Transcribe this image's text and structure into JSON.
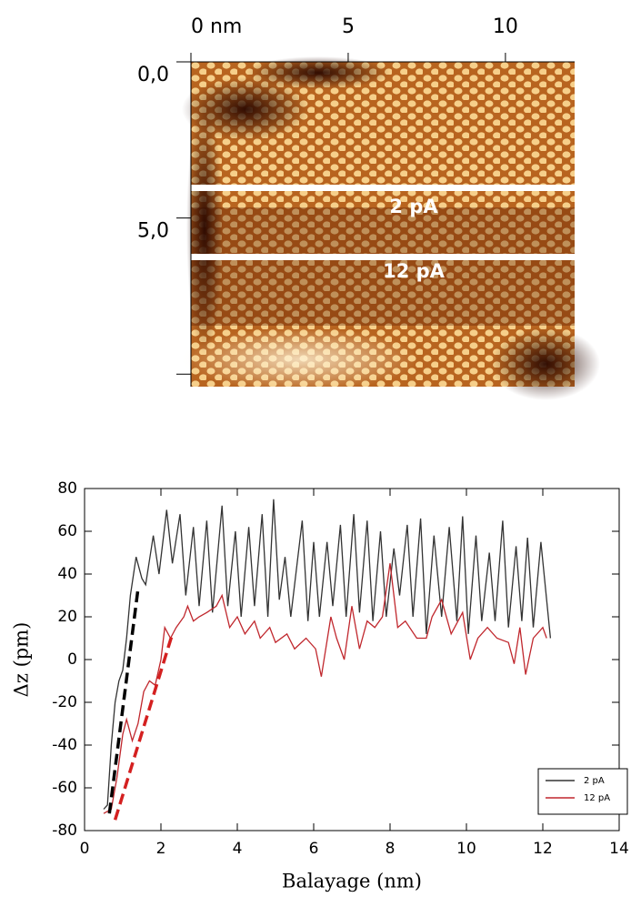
{
  "chart_data": [
    {
      "type": "image",
      "xlim": [
        0,
        12.2
      ],
      "ylim": [
        0,
        10.4
      ],
      "xticks": [
        {
          "value": 0,
          "label": "0 nm"
        },
        5,
        10
      ],
      "yticks": [
        {
          "value": 0,
          "label": "0,0"
        },
        {
          "value": 5,
          "label": "5,0"
        },
        {
          "value": 10,
          "label": null
        }
      ],
      "annotations": [
        "2 pA",
        "12 pA"
      ]
    },
    {
      "type": "line",
      "xlabel": "Balayage (nm)",
      "ylabel": "Δz (pm)",
      "xlim": [
        0,
        14
      ],
      "ylim": [
        -80,
        80
      ],
      "xticks": [
        0,
        2,
        4,
        6,
        8,
        10,
        12,
        14
      ],
      "yticks": [
        -80,
        -60,
        -40,
        -20,
        0,
        20,
        40,
        60,
        80
      ],
      "legend": "lower right",
      "series": [
        {
          "name": "2 pA",
          "color": "#333333",
          "x": [
            0.5,
            0.6,
            0.7,
            0.8,
            0.9,
            1.0,
            1.1,
            1.2,
            1.35,
            1.5,
            1.6,
            1.8,
            1.95,
            2.15,
            2.3,
            2.5,
            2.65,
            2.85,
            3.0,
            3.2,
            3.35,
            3.6,
            3.75,
            3.95,
            4.1,
            4.3,
            4.45,
            4.65,
            4.8,
            4.95,
            5.1,
            5.25,
            5.4,
            5.7,
            5.85,
            6.0,
            6.15,
            6.35,
            6.5,
            6.7,
            6.85,
            7.05,
            7.2,
            7.4,
            7.55,
            7.75,
            7.9,
            8.1,
            8.25,
            8.45,
            8.6,
            8.8,
            8.95,
            9.15,
            9.35,
            9.55,
            9.75,
            9.9,
            10.05,
            10.25,
            10.4,
            10.6,
            10.75,
            10.95,
            11.1,
            11.3,
            11.45,
            11.6,
            11.75,
            11.95,
            12.2
          ],
          "values": [
            -70,
            -68,
            -40,
            -20,
            -10,
            -5,
            10,
            30,
            48,
            38,
            35,
            58,
            40,
            70,
            45,
            68,
            30,
            62,
            25,
            65,
            22,
            72,
            25,
            60,
            20,
            62,
            25,
            68,
            20,
            75,
            28,
            48,
            20,
            65,
            18,
            55,
            20,
            55,
            25,
            63,
            20,
            68,
            22,
            65,
            18,
            60,
            20,
            52,
            30,
            63,
            20,
            66,
            12,
            58,
            20,
            62,
            18,
            67,
            12,
            58,
            18,
            50,
            18,
            65,
            15,
            53,
            18,
            57,
            15,
            55,
            10
          ]
        },
        {
          "name": "12 pA",
          "color": "#c0272d",
          "x": [
            0.5,
            0.7,
            0.85,
            1.0,
            1.1,
            1.25,
            1.4,
            1.55,
            1.7,
            1.85,
            2.0,
            2.1,
            2.25,
            2.4,
            2.6,
            2.7,
            2.85,
            3.0,
            3.2,
            3.45,
            3.6,
            3.8,
            4.0,
            4.2,
            4.45,
            4.6,
            4.85,
            5.0,
            5.3,
            5.5,
            5.8,
            6.05,
            6.2,
            6.45,
            6.6,
            6.8,
            7.0,
            7.2,
            7.4,
            7.6,
            7.8,
            8.0,
            8.2,
            8.4,
            8.7,
            8.95,
            9.1,
            9.35,
            9.6,
            9.9,
            10.1,
            10.3,
            10.55,
            10.8,
            11.1,
            11.25,
            11.4,
            11.55,
            11.75,
            12.0,
            12.1
          ],
          "values": [
            -72,
            -70,
            -55,
            -35,
            -28,
            -38,
            -30,
            -15,
            -10,
            -12,
            0,
            15,
            10,
            15,
            20,
            25,
            18,
            20,
            22,
            25,
            30,
            15,
            20,
            12,
            18,
            10,
            15,
            8,
            12,
            5,
            10,
            5,
            -8,
            20,
            10,
            0,
            25,
            5,
            18,
            15,
            20,
            45,
            15,
            18,
            10,
            10,
            20,
            28,
            12,
            22,
            0,
            10,
            15,
            10,
            8,
            -2,
            15,
            -7,
            10,
            15,
            10
          ]
        }
      ],
      "fits": [
        {
          "color": "#000000",
          "x": [
            0.65,
            1.4
          ],
          "values": [
            -72,
            33
          ]
        },
        {
          "color": "#d42020",
          "x": [
            0.8,
            2.3
          ],
          "values": [
            -75,
            12
          ]
        }
      ]
    }
  ]
}
